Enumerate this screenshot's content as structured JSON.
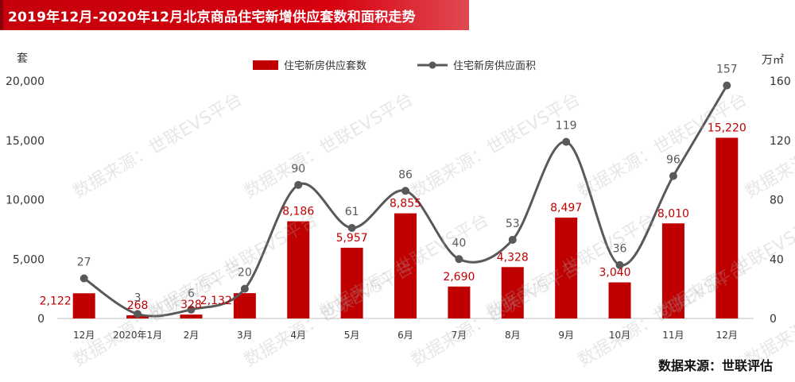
{
  "title": "2019年12月-2020年12月北京商品住宅新增供应套数和面积走势",
  "source_note": "数据来源：世联评估",
  "watermark_text": "数据来源：世联EVS平台",
  "colors": {
    "bar": "#c00000",
    "line": "#595959",
    "bar_label": "#c00000",
    "line_label": "#595959"
  },
  "chart_data": {
    "type": "bar",
    "categories": [
      "12月",
      "2020年1月",
      "2月",
      "3月",
      "4月",
      "5月",
      "6月",
      "7月",
      "8月",
      "9月",
      "10月",
      "11月",
      "12月"
    ],
    "series": [
      {
        "name": "住宅新房供应套数",
        "type": "bar",
        "axis": "left",
        "values": [
          2122,
          268,
          328,
          2132,
          8186,
          5957,
          8855,
          2690,
          4328,
          8497,
          3040,
          8010,
          15220
        ],
        "labels": [
          "2,122",
          "268",
          "328",
          "2,132",
          "8,186",
          "5,957",
          "8,855",
          "2,690",
          "4,328",
          "8,497",
          "3,040",
          "8,010",
          "15,220"
        ]
      },
      {
        "name": "住宅新房供应面积",
        "type": "line",
        "axis": "right",
        "values": [
          27,
          3,
          6,
          20,
          90,
          61,
          86,
          40,
          53,
          119,
          36,
          96,
          157
        ],
        "labels": [
          "27",
          "3",
          "6",
          "20",
          "90",
          "61",
          "86",
          "40",
          "53",
          "119",
          "36",
          "96",
          "157"
        ]
      }
    ],
    "ylabel_left": "套",
    "ylabel_right": "万㎡",
    "ylim_left": [
      0,
      20000
    ],
    "ylim_right": [
      0,
      160
    ],
    "yticks_left": [
      "0",
      "5,000",
      "10,000",
      "15,000",
      "20,000"
    ],
    "yticks_right": [
      "0",
      "40",
      "80",
      "120",
      "160"
    ],
    "legend_position": "top-center",
    "grid": false
  }
}
